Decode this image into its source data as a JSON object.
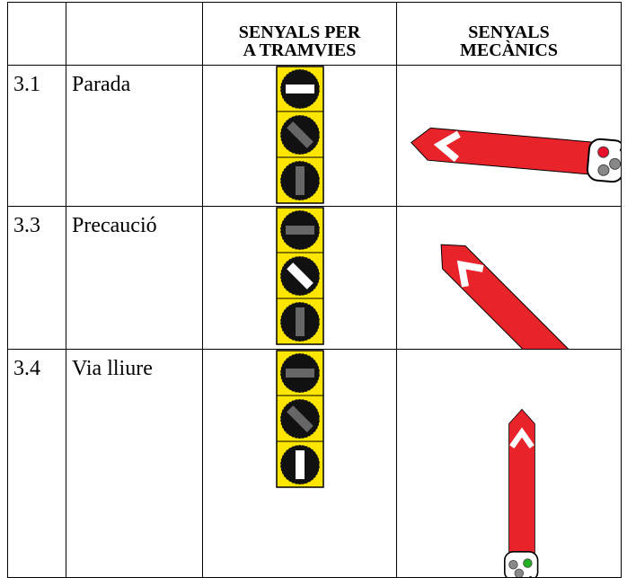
{
  "table": {
    "header": [
      "SENYALS PER A TRAMVIES",
      "SENYALS MECÀNICS"
    ],
    "rows": [
      {
        "code": "3.1",
        "name": "Parada"
      },
      {
        "code": "3.3",
        "name": "Precaució"
      },
      {
        "code": "3.4",
        "name": "Via lliure"
      }
    ]
  }
}
